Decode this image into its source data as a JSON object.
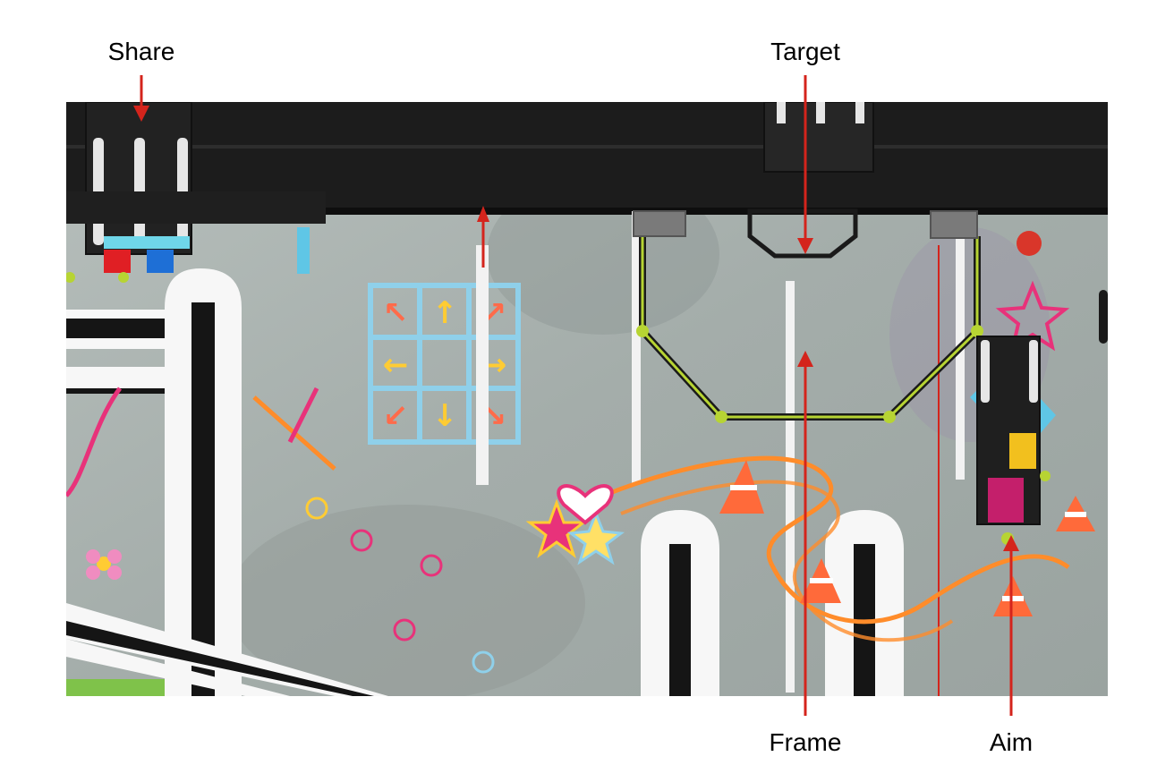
{
  "annotations": [
    {
      "id": "share",
      "text": "Share"
    },
    {
      "id": "target",
      "text": "Target"
    },
    {
      "id": "frame",
      "text": "Frame"
    },
    {
      "id": "aim",
      "text": "Aim"
    }
  ],
  "colors": {
    "arrow": "#d4241c",
    "mat": "#a9b2af",
    "wall": "#1b1b1b",
    "line_black": "#151515",
    "line_white": "#f7f7f7",
    "chalk_blue": "#8fd0ea",
    "chalk_orange": "#ff8c2a",
    "chalk_pink": "#e8327a",
    "accent_green": "#b7d433"
  }
}
